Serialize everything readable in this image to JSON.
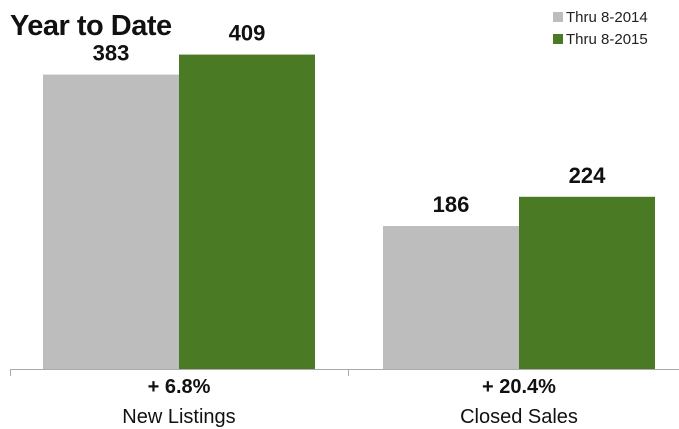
{
  "chart_data": {
    "type": "bar",
    "title": "Year to Date",
    "categories": [
      "New Listings",
      "Closed Sales"
    ],
    "change_labels": [
      "+ 6.8%",
      "+ 20.4%"
    ],
    "series": [
      {
        "name": "Thru 8-2014",
        "values": [
          383,
          186
        ],
        "color": "#bdbdbd"
      },
      {
        "name": "Thru 8-2015",
        "values": [
          409,
          224
        ],
        "color": "#4a7a23"
      }
    ],
    "ylim": [
      0,
      480
    ],
    "grid": false,
    "legend": "top-right"
  }
}
